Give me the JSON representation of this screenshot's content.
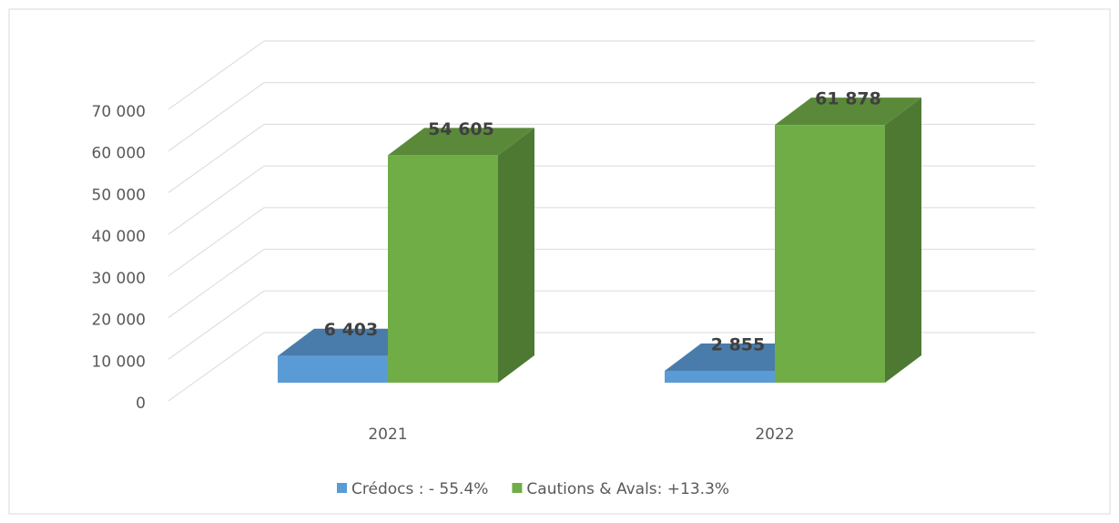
{
  "chart_data": {
    "type": "bar3d",
    "categories": [
      "2021",
      "2022"
    ],
    "series": [
      {
        "name": "Crédocs : - 55.4%",
        "color": "#5b9bd5",
        "values": [
          6403,
          2855
        ],
        "value_labels": [
          "6 403",
          "2 855"
        ]
      },
      {
        "name": "Cautions & Avals: +13.3%",
        "color": "#70ad47",
        "values": [
          54605,
          61878
        ],
        "value_labels": [
          "54 605",
          "61 878"
        ]
      }
    ],
    "ylim": [
      0,
      70000
    ],
    "yticks": [
      0,
      {
        "value": 10000,
        "label": "10 000"
      },
      {
        "value": 20000,
        "label": "20 000"
      },
      {
        "value": 30000,
        "label": "30 000"
      },
      {
        "value": 40000,
        "label": "40 000"
      },
      {
        "value": 50000,
        "label": "50 000"
      },
      {
        "value": 60000,
        "label": "60 000"
      },
      {
        "value": 70000,
        "label": "70 000"
      }
    ],
    "grid": true,
    "legend": "bottom"
  }
}
